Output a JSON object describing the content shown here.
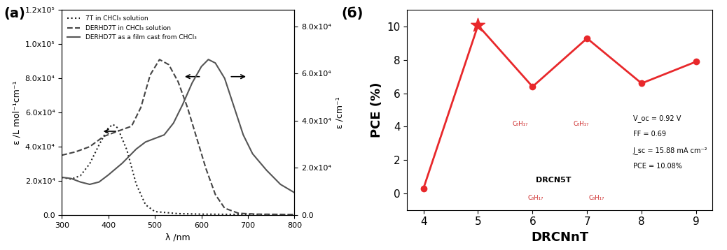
{
  "chart_data": [
    {
      "type": "line",
      "panel_label": "(a)",
      "x_label": "λ /nm",
      "y_label": "ε /L mol⁻¹cm⁻¹",
      "y2_label": "ε /cm⁻¹",
      "xlim": [
        300,
        800
      ],
      "xticks": [
        300,
        400,
        500,
        600,
        700,
        800
      ],
      "ylim": [
        0,
        120000
      ],
      "yticks": [
        {
          "value": 0,
          "label": "0.0"
        },
        {
          "value": 20000,
          "label": "2.0x10⁴"
        },
        {
          "value": 40000,
          "label": "4.0x10⁴"
        },
        {
          "value": 60000,
          "label": "6.0x10⁴"
        },
        {
          "value": 80000,
          "label": "8.0x10⁴"
        },
        {
          "value": 100000,
          "label": "1.0x10⁵"
        },
        {
          "value": 120000,
          "label": "1.2x10⁵"
        }
      ],
      "y2lim": [
        0,
        87000
      ],
      "y2ticks": [
        {
          "value": 0,
          "label": "0.0"
        },
        {
          "value": 20000,
          "label": "2.0x10⁴"
        },
        {
          "value": 40000,
          "label": "4.0x10⁴"
        },
        {
          "value": 60000,
          "label": "6.0x10⁴"
        },
        {
          "value": 80000,
          "label": "8.0x10⁴"
        }
      ],
      "legend": "upper left",
      "series": [
        {
          "name": "7T in CHCl₃ solution",
          "color": "#222222",
          "line_style": "dotted",
          "x": [
            300,
            320,
            340,
            360,
            380,
            400,
            410,
            420,
            440,
            460,
            480,
            500,
            550,
            600,
            700,
            800
          ],
          "values": [
            22000,
            21000,
            23000,
            30000,
            41000,
            51000,
            53000,
            51000,
            38000,
            18000,
            6000,
            2000,
            800,
            500,
            300,
            200
          ]
        },
        {
          "name": "DERHD7T in CHCl₃ solution",
          "color": "#444444",
          "line_style": "dashed",
          "x": [
            300,
            330,
            360,
            390,
            420,
            450,
            470,
            490,
            510,
            530,
            550,
            570,
            590,
            610,
            630,
            650,
            680,
            720,
            800
          ],
          "values": [
            35000,
            37000,
            40000,
            46000,
            49000,
            52000,
            63000,
            82000,
            91000,
            88000,
            78000,
            63000,
            45000,
            27000,
            12000,
            4000,
            1000,
            500,
            300
          ]
        },
        {
          "name": "DERHD7T as a film cast from CHCl₃",
          "color": "#555555",
          "line_style": "solid",
          "axis": "y2",
          "x": [
            300,
            320,
            340,
            360,
            380,
            400,
            430,
            460,
            480,
            500,
            520,
            540,
            560,
            580,
            600,
            615,
            630,
            650,
            670,
            690,
            710,
            740,
            770,
            800
          ],
          "values": [
            16000,
            15500,
            14000,
            13000,
            14000,
            17000,
            22000,
            28000,
            31000,
            32500,
            34000,
            39000,
            47000,
            56000,
            63000,
            66000,
            64500,
            58000,
            46000,
            34000,
            26000,
            19000,
            13000,
            9500
          ]
        }
      ]
    },
    {
      "type": "line",
      "panel_label": "(б)",
      "x_label": "DRCNnT",
      "y_label": "PCE (%)",
      "xlim": [
        3.7,
        9.3
      ],
      "xticks": [
        4,
        5,
        6,
        7,
        8,
        9
      ],
      "ylim": [
        -1,
        11
      ],
      "yticks": [
        0,
        2,
        4,
        6,
        8,
        10
      ],
      "series": [
        {
          "color": "#e8282b",
          "marker": "o",
          "line_style": "solid",
          "x": [
            4,
            5,
            6,
            7,
            8,
            9
          ],
          "values": [
            0.3,
            10.08,
            6.4,
            9.3,
            6.6,
            7.9
          ]
        },
        {
          "type": "scatter",
          "color": "#e8282b",
          "marker": "star",
          "x": [
            5
          ],
          "values": [
            10.08
          ]
        }
      ],
      "structure_name": "DRCN5T",
      "substituent": "C₈H₁₇",
      "annotations": [
        "V_oc = 0.92 V",
        "FF = 0.69",
        "J_sc = 15.88 mA cm⁻²",
        "PCE = 10.08%"
      ]
    }
  ]
}
